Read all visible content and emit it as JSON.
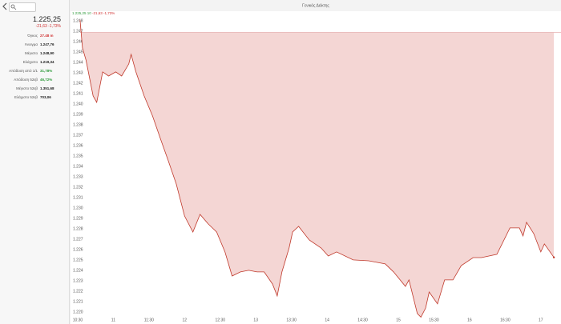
{
  "sidebar": {
    "price": "1.225,25",
    "change": "-21,63 -1,73%",
    "stats": [
      {
        "label": "Όγκος",
        "value": "27.48 m",
        "color": "#d03030"
      },
      {
        "label": "Άνοιγμα",
        "value": "1.247,76",
        "color": "#222222"
      },
      {
        "label": "Μέγιστο",
        "value": "1.248,90",
        "color": "#222222"
      },
      {
        "label": "Ελάχιστο",
        "value": "1.219,34",
        "color": "#222222"
      },
      {
        "label": "Απόδοση από 1/1",
        "value": "31,78%",
        "color": "#2e9a3a"
      },
      {
        "label": "Απόδοση 52εβ",
        "value": "46,72%",
        "color": "#2e9a3a"
      },
      {
        "label": "Μέγιστο 52εβ",
        "value": "1.351,68",
        "color": "#222222"
      },
      {
        "label": "Ελάχιστο 52εβ",
        "value": "703,06",
        "color": "#222222"
      }
    ]
  },
  "chart_data": {
    "type": "line",
    "title": "Γενικός Δείκτης",
    "header_price": "1.225,25 10",
    "header_change": "-21,63 -1,73%",
    "x": [
      "10:32",
      "10:34",
      "10:37",
      "10:43",
      "10:46",
      "10:51",
      "10:56",
      "11:02",
      "11:07",
      "11:13",
      "11:15",
      "11:19",
      "11:26",
      "11:33",
      "11:40",
      "11:46",
      "11:53",
      "12:00",
      "12:07",
      "12:13",
      "12:20",
      "12:27",
      "12:34",
      "12:40",
      "12:47",
      "12:54",
      "13:01",
      "13:07",
      "13:14",
      "13:18",
      "13:22",
      "13:28",
      "13:31",
      "13:36",
      "13:45",
      "13:55",
      "14:01",
      "14:08",
      "14:22",
      "14:35",
      "14:49",
      "14:56",
      "15:06",
      "15:09",
      "15:16",
      "15:19",
      "15:23",
      "15:26",
      "15:33",
      "15:39",
      "15:46",
      "15:53",
      "16:03",
      "16:10",
      "16:23",
      "16:34",
      "16:42",
      "16:45",
      "16:48",
      "16:54",
      "17:00",
      "17:03",
      "17:11"
    ],
    "series": [
      {
        "name": "Γενικός Δείκτης",
        "color": "#c0392b",
        "values": [
          1248.08,
          1245.38,
          1244.23,
          1240.77,
          1240.15,
          1243.08,
          1242.69,
          1243.08,
          1242.69,
          1243.85,
          1244.77,
          1243.08,
          1240.77,
          1238.85,
          1236.54,
          1234.62,
          1232.31,
          1229.23,
          1227.69,
          1229.38,
          1228.46,
          1227.69,
          1225.77,
          1223.46,
          1223.85,
          1224.0,
          1223.85,
          1223.85,
          1222.69,
          1221.54,
          1223.85,
          1226.15,
          1227.69,
          1228.23,
          1226.92,
          1226.15,
          1225.38,
          1225.77,
          1225.0,
          1224.92,
          1224.62,
          1223.85,
          1222.46,
          1223.08,
          1219.85,
          1219.5,
          1220.38,
          1221.92,
          1220.77,
          1223.08,
          1223.08,
          1224.46,
          1225.23,
          1225.23,
          1225.54,
          1228.08,
          1228.08,
          1227.31,
          1228.62,
          1227.54,
          1225.77,
          1226.54,
          1225.25
        ]
      }
    ],
    "reference_line": 1246.88,
    "fill_color": "#f4d6d4",
    "xlim": [
      "10:28",
      "17:17"
    ],
    "xticks": [
      "10:30",
      "11",
      "11:30",
      "12",
      "12:30",
      "13",
      "13:30",
      "14",
      "14:30",
      "15",
      "15:30",
      "16",
      "16:30",
      "17"
    ],
    "ylim": [
      1219.38,
      1248.46
    ],
    "yticks": [
      {
        "value": 1220,
        "label": "1.220"
      },
      {
        "value": 1221,
        "label": "1.221"
      },
      {
        "value": 1222,
        "label": "1.222"
      },
      {
        "value": 1223,
        "label": "1.223"
      },
      {
        "value": 1224,
        "label": "1.224"
      },
      {
        "value": 1225,
        "label": "1.225"
      },
      {
        "value": 1226,
        "label": "1.226"
      },
      {
        "value": 1227,
        "label": "1.227"
      },
      {
        "value": 1228,
        "label": "1.228"
      },
      {
        "value": 1229,
        "label": "1.229"
      },
      {
        "value": 1230,
        "label": "1.230"
      },
      {
        "value": 1231,
        "label": "1.231"
      },
      {
        "value": 1232,
        "label": "1.232"
      },
      {
        "value": 1233,
        "label": "1.233"
      },
      {
        "value": 1234,
        "label": "1.234"
      },
      {
        "value": 1235,
        "label": "1.235"
      },
      {
        "value": 1236,
        "label": "1.236"
      },
      {
        "value": 1237,
        "label": "1.237"
      },
      {
        "value": 1238,
        "label": "1.238"
      },
      {
        "value": 1239,
        "label": "1.239"
      },
      {
        "value": 1240,
        "label": "1.240"
      },
      {
        "value": 1241,
        "label": "1.241"
      },
      {
        "value": 1242,
        "label": "1.242"
      },
      {
        "value": 1243,
        "label": "1.243"
      },
      {
        "value": 1244,
        "label": "1.244"
      },
      {
        "value": 1245,
        "label": "1.245"
      },
      {
        "value": 1246,
        "label": "1.246"
      },
      {
        "value": 1247,
        "label": "1.247"
      },
      {
        "value": 1248,
        "label": "1.248"
      }
    ]
  }
}
